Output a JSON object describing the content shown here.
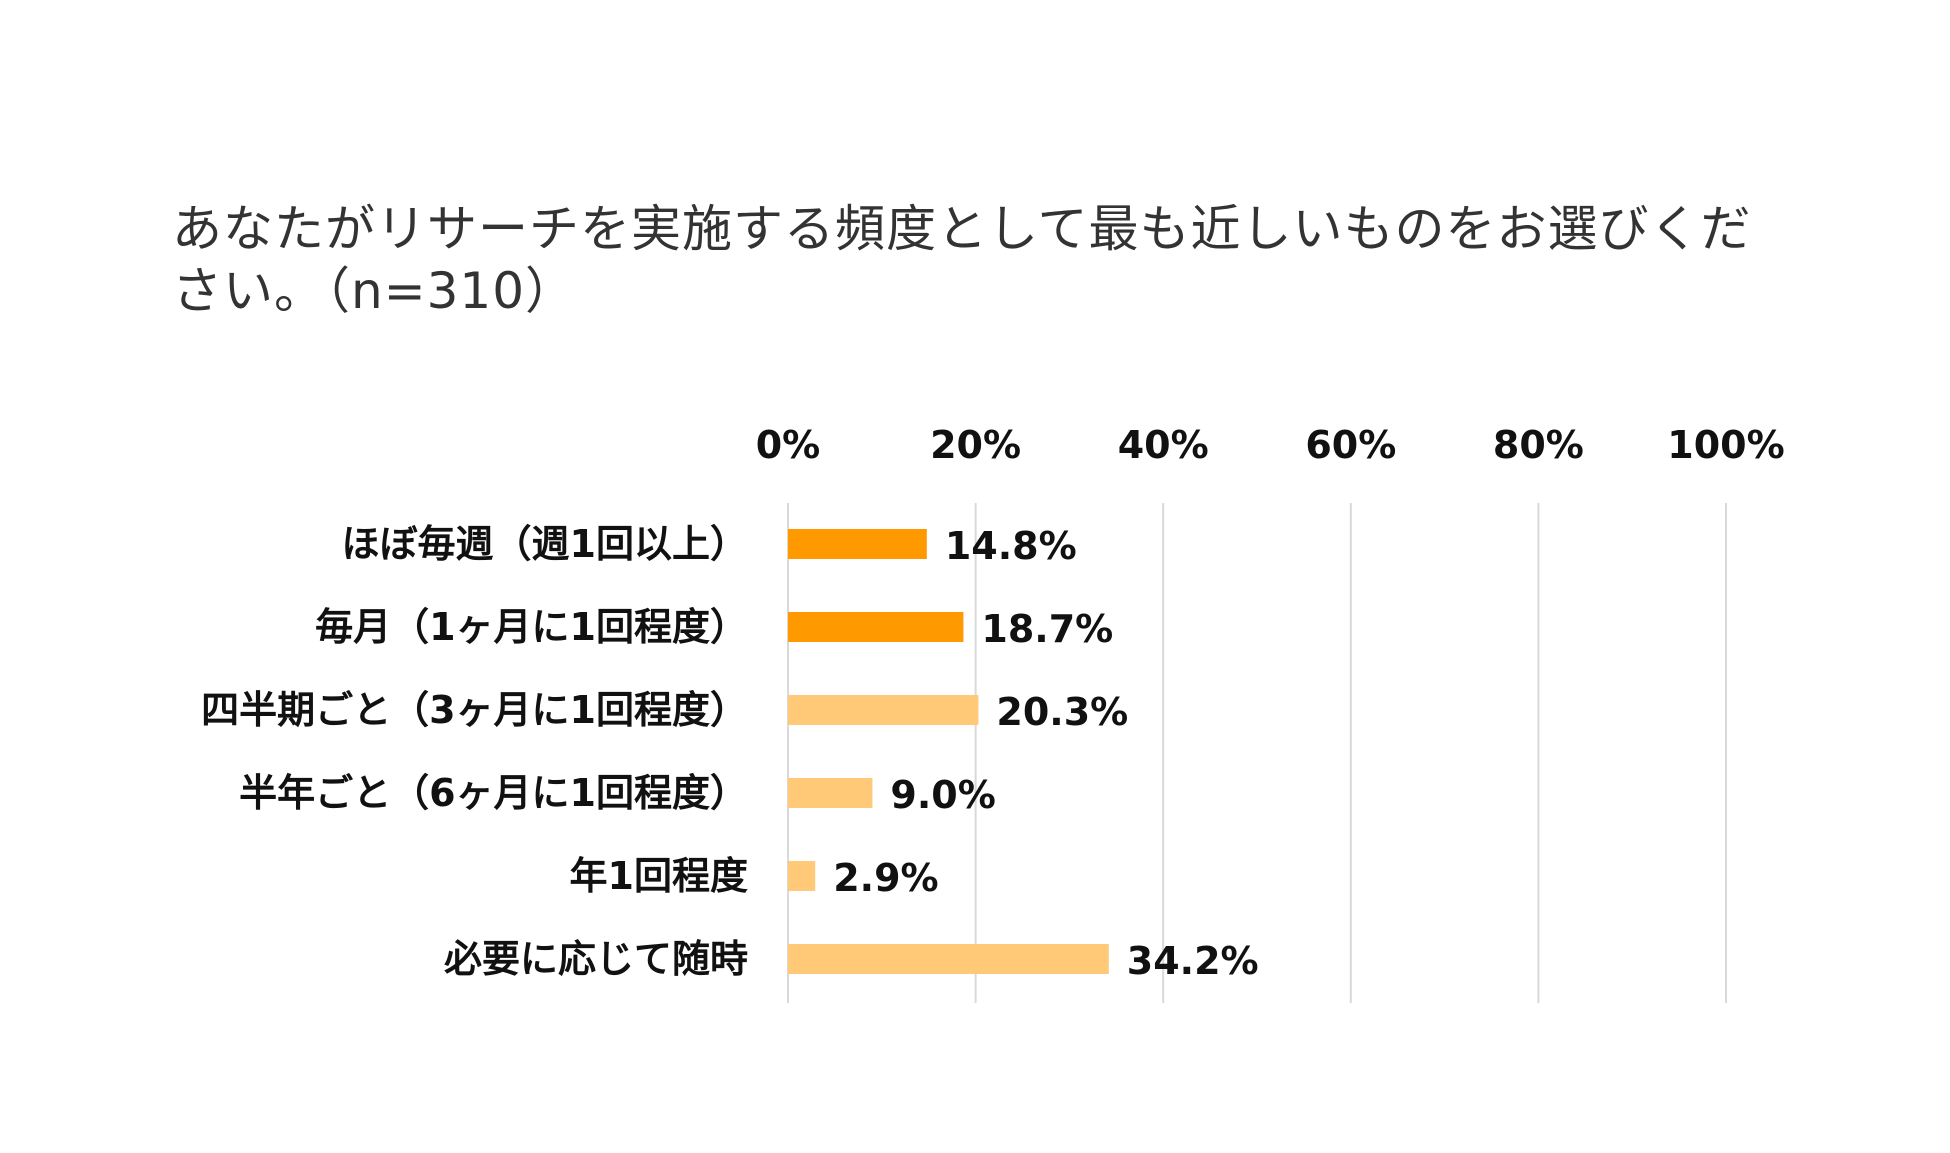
{
  "chart_data": {
    "type": "bar",
    "orientation": "horizontal",
    "title": "あなたがリサーチを実施する頻度として最も近しいものをお選びください。（n=310）",
    "categories": [
      "ほぼ毎週（週1回以上）",
      "毎月（1ヶ月に1回程度）",
      "四半期ごと（3ヶ月に1回程度）",
      "半年ごと（6ヶ月に1回程度）",
      "年1回程度",
      "必要に応じて随時"
    ],
    "values": [
      14.8,
      18.7,
      20.3,
      9.0,
      2.9,
      34.2
    ],
    "data_labels": [
      "14.8%",
      "18.7%",
      "20.3%",
      "9.0%",
      "2.9%",
      "34.2%"
    ],
    "bar_colors": [
      "#FF9900",
      "#FF9900",
      "#FFC977",
      "#FFC977",
      "#FFC977",
      "#FFC977"
    ],
    "xlim": [
      0,
      100
    ],
    "x_ticks": [
      0,
      20,
      40,
      60,
      80,
      100
    ],
    "x_tick_labels": [
      "0%",
      "20%",
      "40%",
      "60%",
      "80%",
      "100%"
    ],
    "x_axis_position": "top",
    "grid": true,
    "xlabel": "",
    "ylabel": ""
  }
}
